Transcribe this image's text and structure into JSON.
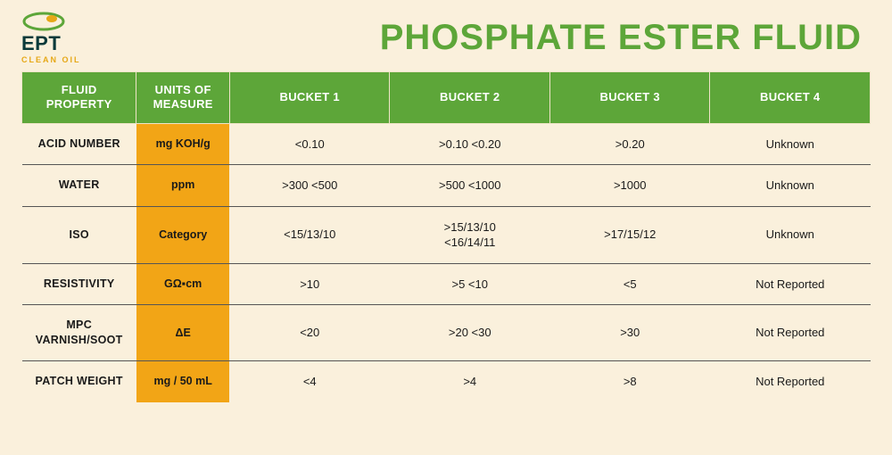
{
  "logo": {
    "text": "EPT",
    "sub": "CLEAN OIL",
    "mark_color_primary": "#5da639",
    "mark_color_secondary": "#e6a817"
  },
  "title": "PHOSPHATE ESTER FLUID",
  "colors": {
    "page_bg": "#faf0dc",
    "header_green": "#5da639",
    "units_orange": "#f2a516",
    "row_border": "#555555",
    "text": "#1a1a1a",
    "white": "#ffffff"
  },
  "table": {
    "columns": [
      "FLUID PROPERTY",
      "UNITS OF MEASURE",
      "BUCKET 1",
      "BUCKET 2",
      "BUCKET 3",
      "BUCKET 4"
    ],
    "rows": [
      {
        "property": "ACID NUMBER",
        "units": "mg KOH/g",
        "b1": "<0.10",
        "b2": ">0.10 <0.20",
        "b3": ">0.20",
        "b4": "Unknown"
      },
      {
        "property": "WATER",
        "units": "ppm",
        "b1": ">300 <500",
        "b2": ">500 <1000",
        "b3": ">1000",
        "b4": "Unknown"
      },
      {
        "property": "ISO",
        "units": "Category",
        "b1": "<15/13/10",
        "b2": ">15/13/10\n<16/14/11",
        "b3": ">17/15/12",
        "b4": "Unknown"
      },
      {
        "property": "RESISTIVITY",
        "units": "GΩ▪cm",
        "b1": ">10",
        "b2": ">5 <10",
        "b3": "<5",
        "b4": "Not Reported"
      },
      {
        "property": "MPC VARNISH/SOOT",
        "units": "ΔE",
        "b1": "<20",
        "b2": ">20 <30",
        "b3": ">30",
        "b4": "Not Reported"
      },
      {
        "property": "PATCH WEIGHT",
        "units": "mg / 50 mL",
        "b1": "<4",
        "b2": ">4",
        "b3": ">8",
        "b4": "Not Reported"
      }
    ]
  }
}
